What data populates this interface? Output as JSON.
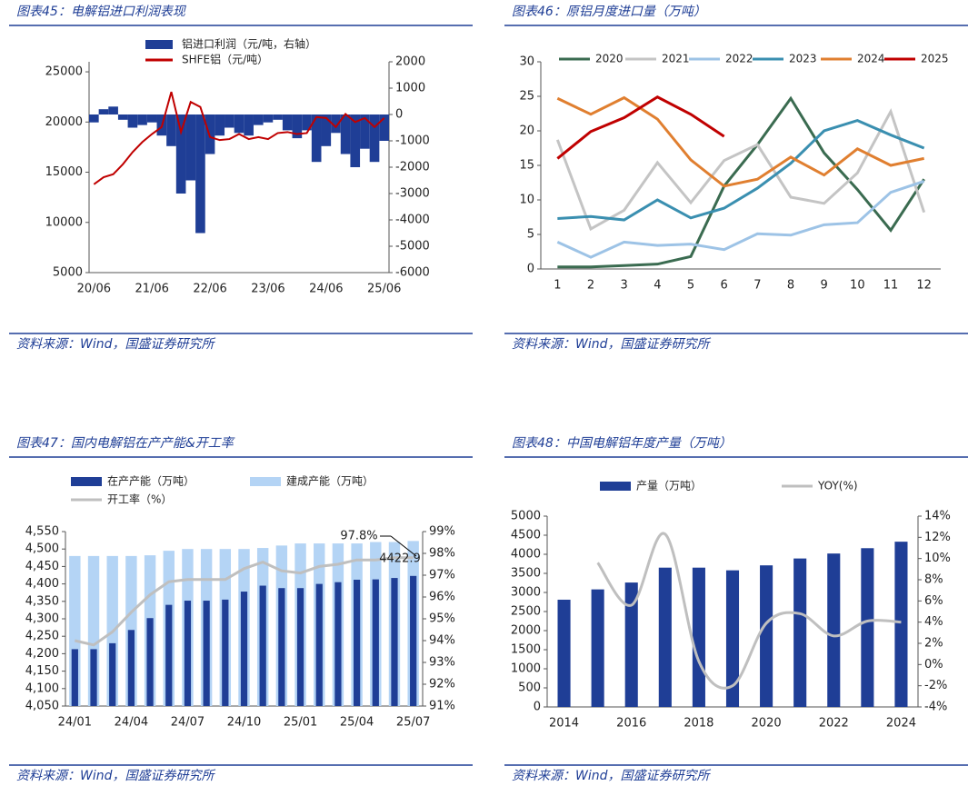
{
  "chart_data": [
    {
      "type": "combo",
      "title": "图表45：电解铝进口利润表现",
      "source": "资料来源：Wind，国盛证券研究所",
      "categories": [
        "20/06",
        null,
        null,
        null,
        null,
        null,
        "21/06",
        null,
        null,
        null,
        null,
        null,
        "22/06",
        null,
        null,
        null,
        null,
        null,
        "23/06",
        null,
        null,
        null,
        null,
        null,
        "24/06",
        null,
        null,
        null,
        null,
        null,
        "25/06"
      ],
      "series": [
        {
          "name": "铝进口利润（元/吨，右轴）",
          "color": "#1f3e96",
          "kind": "bar",
          "axis": "y2",
          "values": [
            -300,
            200,
            300,
            -200,
            -500,
            -400,
            -300,
            -800,
            -1200,
            -3000,
            -2500,
            -4500,
            -1500,
            -800,
            -500,
            -700,
            -800,
            -400,
            -300,
            -200,
            -600,
            -900,
            -600,
            -1800,
            -1200,
            -700,
            -1500,
            -2000,
            -1300,
            -1800,
            -1000
          ]
        },
        {
          "name": "SHFE铝（元/吨）",
          "color": "#c00000",
          "kind": "line",
          "values": [
            13800,
            14500,
            14800,
            15800,
            17000,
            18000,
            18800,
            19500,
            23000,
            19000,
            22000,
            21500,
            18500,
            18200,
            18300,
            18800,
            18300,
            18500,
            18300,
            18900,
            19000,
            18800,
            18900,
            20500,
            20400,
            19500,
            20800,
            20000,
            20400,
            19500,
            20400
          ]
        }
      ],
      "ylim": [
        5000,
        26000
      ],
      "yticks": [
        5000,
        10000,
        15000,
        20000,
        25000
      ],
      "y2lim": [
        -6000,
        2000
      ],
      "y2ticks": [
        -6000,
        -5000,
        -4000,
        -3000,
        -2000,
        -1000,
        0,
        1000,
        2000
      ]
    },
    {
      "type": "line",
      "title": "图表46：原铝月度进口量（万吨）",
      "source": "资料来源：Wind，国盛证券研究所",
      "categories": [
        "1",
        "2",
        "3",
        "4",
        "5",
        "6",
        "7",
        "8",
        "9",
        "10",
        "11",
        "12"
      ],
      "series": [
        {
          "name": "2020",
          "color": "#3a6b50",
          "kind": "line",
          "values": [
            0.3,
            0.3,
            0.5,
            0.7,
            1.8,
            12,
            18,
            24.7,
            16.8,
            11.5,
            5.6,
            13
          ]
        },
        {
          "name": "2021",
          "color": "#c4c4c4",
          "kind": "line",
          "values": [
            18.7,
            5.8,
            8.5,
            15.4,
            9.6,
            15.7,
            18,
            10.4,
            9.5,
            13.9,
            22.8,
            8.2
          ]
        },
        {
          "name": "2022",
          "color": "#9dc3e6",
          "kind": "line",
          "values": [
            3.9,
            1.7,
            3.9,
            3.4,
            3.6,
            2.8,
            5.1,
            4.9,
            6.4,
            6.7,
            11.1,
            12.7
          ]
        },
        {
          "name": "2023",
          "color": "#3a8fb0",
          "kind": "line",
          "values": [
            7.3,
            7.6,
            7.1,
            10,
            7.4,
            8.8,
            11.7,
            15.3,
            20,
            21.5,
            19.4,
            17.5
          ]
        },
        {
          "name": "2024",
          "color": "#e07f30",
          "kind": "line",
          "values": [
            24.7,
            22.4,
            24.8,
            21.7,
            15.8,
            12,
            13,
            16.2,
            13.6,
            17.4,
            15,
            16
          ]
        },
        {
          "name": "2025",
          "color": "#c00000",
          "kind": "line",
          "values": [
            16,
            19.9,
            21.9,
            24.9,
            22.4,
            19.2,
            null,
            null,
            null,
            null,
            null,
            null
          ]
        }
      ],
      "ylim": [
        0,
        30
      ],
      "yticks": [
        0,
        5,
        10,
        15,
        20,
        25,
        30
      ]
    },
    {
      "type": "combo",
      "title": "图表47：国内电解铝在产产能&开工率",
      "source": "资料来源：Wind，国盛证券研究所",
      "categories": [
        "24/01",
        null,
        null,
        "24/04",
        null,
        null,
        "24/07",
        null,
        null,
        "24/10",
        null,
        null,
        "25/01",
        null,
        null,
        "25/04",
        null,
        null,
        "25/07"
      ],
      "series": [
        {
          "name": "在产产能（万吨）",
          "color": "#1f3e96",
          "kind": "bar",
          "values": [
            4213,
            4213,
            4230,
            4268,
            4302,
            4340,
            4352,
            4352,
            4355,
            4378,
            4395,
            4388,
            4388,
            4400,
            4405,
            4412,
            4413,
            4417,
            4422.9
          ]
        },
        {
          "name": "建成产能（万吨）",
          "color": "#b4d4f5",
          "kind": "bar",
          "values": [
            4480,
            4480,
            4480,
            4480,
            4482,
            4495,
            4500,
            4500,
            4500,
            4500,
            4503,
            4510,
            4516,
            4516,
            4516,
            4516,
            4520,
            4520,
            4523
          ]
        },
        {
          "name": "开工率（%）",
          "color": "#bfbfbf",
          "kind": "line",
          "axis": "y2",
          "values": [
            94.0,
            93.8,
            94.4,
            95.3,
            96.1,
            96.7,
            96.8,
            96.8,
            96.8,
            97.3,
            97.6,
            97.2,
            97.1,
            97.4,
            97.5,
            97.7,
            97.7,
            97.8,
            97.8
          ]
        }
      ],
      "annotations": [
        "97.8%",
        "4422.9"
      ],
      "ylim": [
        4050,
        4550
      ],
      "yticks": [
        {
          "value": 4050,
          "label": "4,050"
        },
        {
          "value": 4100,
          "label": "4,100"
        },
        {
          "value": 4150,
          "label": "4,150"
        },
        {
          "value": 4200,
          "label": "4,200"
        },
        {
          "value": 4250,
          "label": "4,250"
        },
        {
          "value": 4300,
          "label": "4,300"
        },
        {
          "value": 4350,
          "label": "4,350"
        },
        {
          "value": 4400,
          "label": "4,400"
        },
        {
          "value": 4450,
          "label": "4,450"
        },
        {
          "value": 4500,
          "label": "4,500"
        },
        {
          "value": 4550,
          "label": "4,550"
        }
      ],
      "y2lim": [
        91,
        99
      ],
      "y2ticks": [
        {
          "value": 91,
          "label": "91%"
        },
        {
          "value": 92,
          "label": "92%"
        },
        {
          "value": 93,
          "label": "93%"
        },
        {
          "value": 94,
          "label": "94%"
        },
        {
          "value": 95,
          "label": "95%"
        },
        {
          "value": 96,
          "label": "96%"
        },
        {
          "value": 97,
          "label": "97%"
        },
        {
          "value": 98,
          "label": "98%"
        },
        {
          "value": 99,
          "label": "99%"
        }
      ]
    },
    {
      "type": "combo",
      "title": "图表48：中国电解铝年度产量（万吨）",
      "source": "资料来源：Wind，国盛证券研究所",
      "categories": [
        "2014",
        null,
        "2016",
        null,
        "2018",
        null,
        "2020",
        null,
        "2022",
        null,
        "2024"
      ],
      "series": [
        {
          "name": "产量（万吨）",
          "color": "#1f3e96",
          "kind": "bar",
          "values": [
            2810,
            3080,
            3260,
            3650,
            3650,
            3580,
            3710,
            3890,
            4020,
            4160,
            4330
          ]
        },
        {
          "name": "YOY(%)",
          "color": "#bfbfbf",
          "kind": "line",
          "axis": "y2",
          "smooth": true,
          "values": [
            null,
            9.6,
            5.6,
            12.3,
            0.3,
            -2.0,
            3.9,
            4.8,
            2.7,
            4.1,
            4.0
          ]
        }
      ],
      "ylim": [
        0,
        5000
      ],
      "yticks": [
        0,
        500,
        1000,
        1500,
        2000,
        2500,
        3000,
        3500,
        4000,
        4500,
        5000
      ],
      "y2lim": [
        -4,
        14
      ],
      "y2ticks": [
        {
          "value": -4,
          "label": "-4%"
        },
        {
          "value": -2,
          "label": "-2%"
        },
        {
          "value": 0,
          "label": "0%"
        },
        {
          "value": 2,
          "label": "2%"
        },
        {
          "value": 4,
          "label": "4%"
        },
        {
          "value": 6,
          "label": "6%"
        },
        {
          "value": 8,
          "label": "8%"
        },
        {
          "value": 10,
          "label": "10%"
        },
        {
          "value": 12,
          "label": "12%"
        },
        {
          "value": 14,
          "label": "14%"
        }
      ]
    }
  ]
}
